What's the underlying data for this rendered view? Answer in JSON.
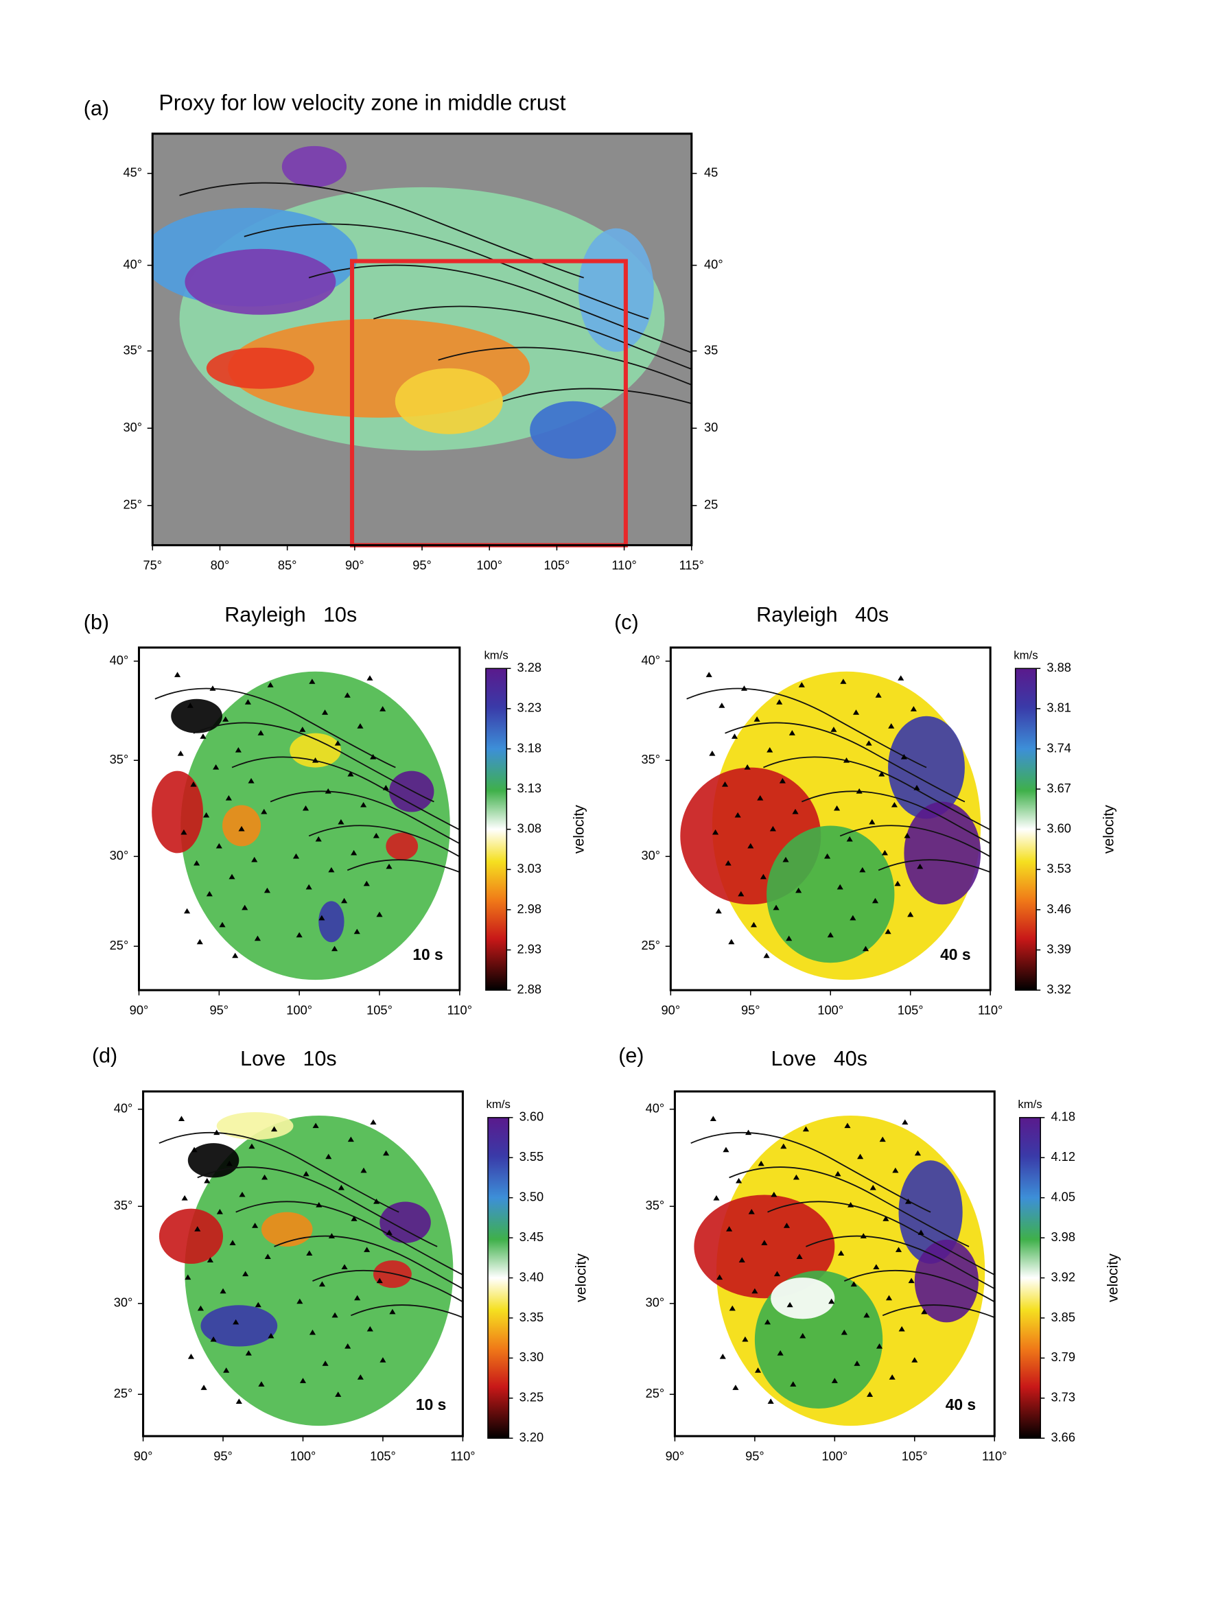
{
  "panels": [
    {
      "label": "(a)",
      "title": "Proxy for low velocity zone in middle crust",
      "xticks": [
        "75°",
        "80°",
        "85°",
        "90°",
        "95°",
        "100°",
        "105°",
        "110°",
        "115°"
      ],
      "yticks": [
        "45°",
        "40°",
        "35°",
        "30°",
        "25°"
      ],
      "yticks_right": [
        "45",
        "40°",
        "35",
        "30",
        "25"
      ]
    },
    {
      "label": "(b)",
      "title": "Rayleigh   10s",
      "xticks": [
        "90°",
        "95°",
        "100°",
        "105°",
        "110°"
      ],
      "yticks": [
        "40°",
        "35°",
        "30°",
        "25°"
      ],
      "colorbar": {
        "unit": "km/s",
        "label": "velocity",
        "ticks": [
          "3.28",
          "3.23",
          "3.18",
          "3.13",
          "3.08",
          "3.03",
          "2.98",
          "2.93",
          "2.88"
        ]
      },
      "period": "10 s"
    },
    {
      "label": "(c)",
      "title": "Rayleigh   40s",
      "xticks": [
        "90°",
        "95°",
        "100°",
        "105°",
        "110°"
      ],
      "yticks": [
        "40°",
        "35°",
        "30°",
        "25°"
      ],
      "colorbar": {
        "unit": "km/s",
        "label": "velocity",
        "ticks": [
          "3.88",
          "3.81",
          "3.74",
          "3.67",
          "3.60",
          "3.53",
          "3.46",
          "3.39",
          "3.32"
        ]
      },
      "period": "40 s"
    },
    {
      "label": "(d)",
      "title": "Love   10s",
      "xticks": [
        "90°",
        "95°",
        "100°",
        "105°",
        "110°"
      ],
      "yticks": [
        "40°",
        "35°",
        "30°",
        "25°"
      ],
      "colorbar": {
        "unit": "km/s",
        "label": "velocity",
        "ticks": [
          "3.60",
          "3.55",
          "3.50",
          "3.45",
          "3.40",
          "3.35",
          "3.30",
          "3.25",
          "3.20"
        ]
      },
      "period": "10 s"
    },
    {
      "label": "(e)",
      "title": "Love   40s",
      "xticks": [
        "90°",
        "95°",
        "100°",
        "105°",
        "110°"
      ],
      "yticks": [
        "40°",
        "35°",
        "30°",
        "25°"
      ],
      "colorbar": {
        "unit": "km/s",
        "label": "velocity",
        "ticks": [
          "4.18",
          "4.12",
          "4.05",
          "3.98",
          "3.92",
          "3.85",
          "3.79",
          "3.73",
          "3.66"
        ]
      },
      "period": "40 s"
    }
  ]
}
